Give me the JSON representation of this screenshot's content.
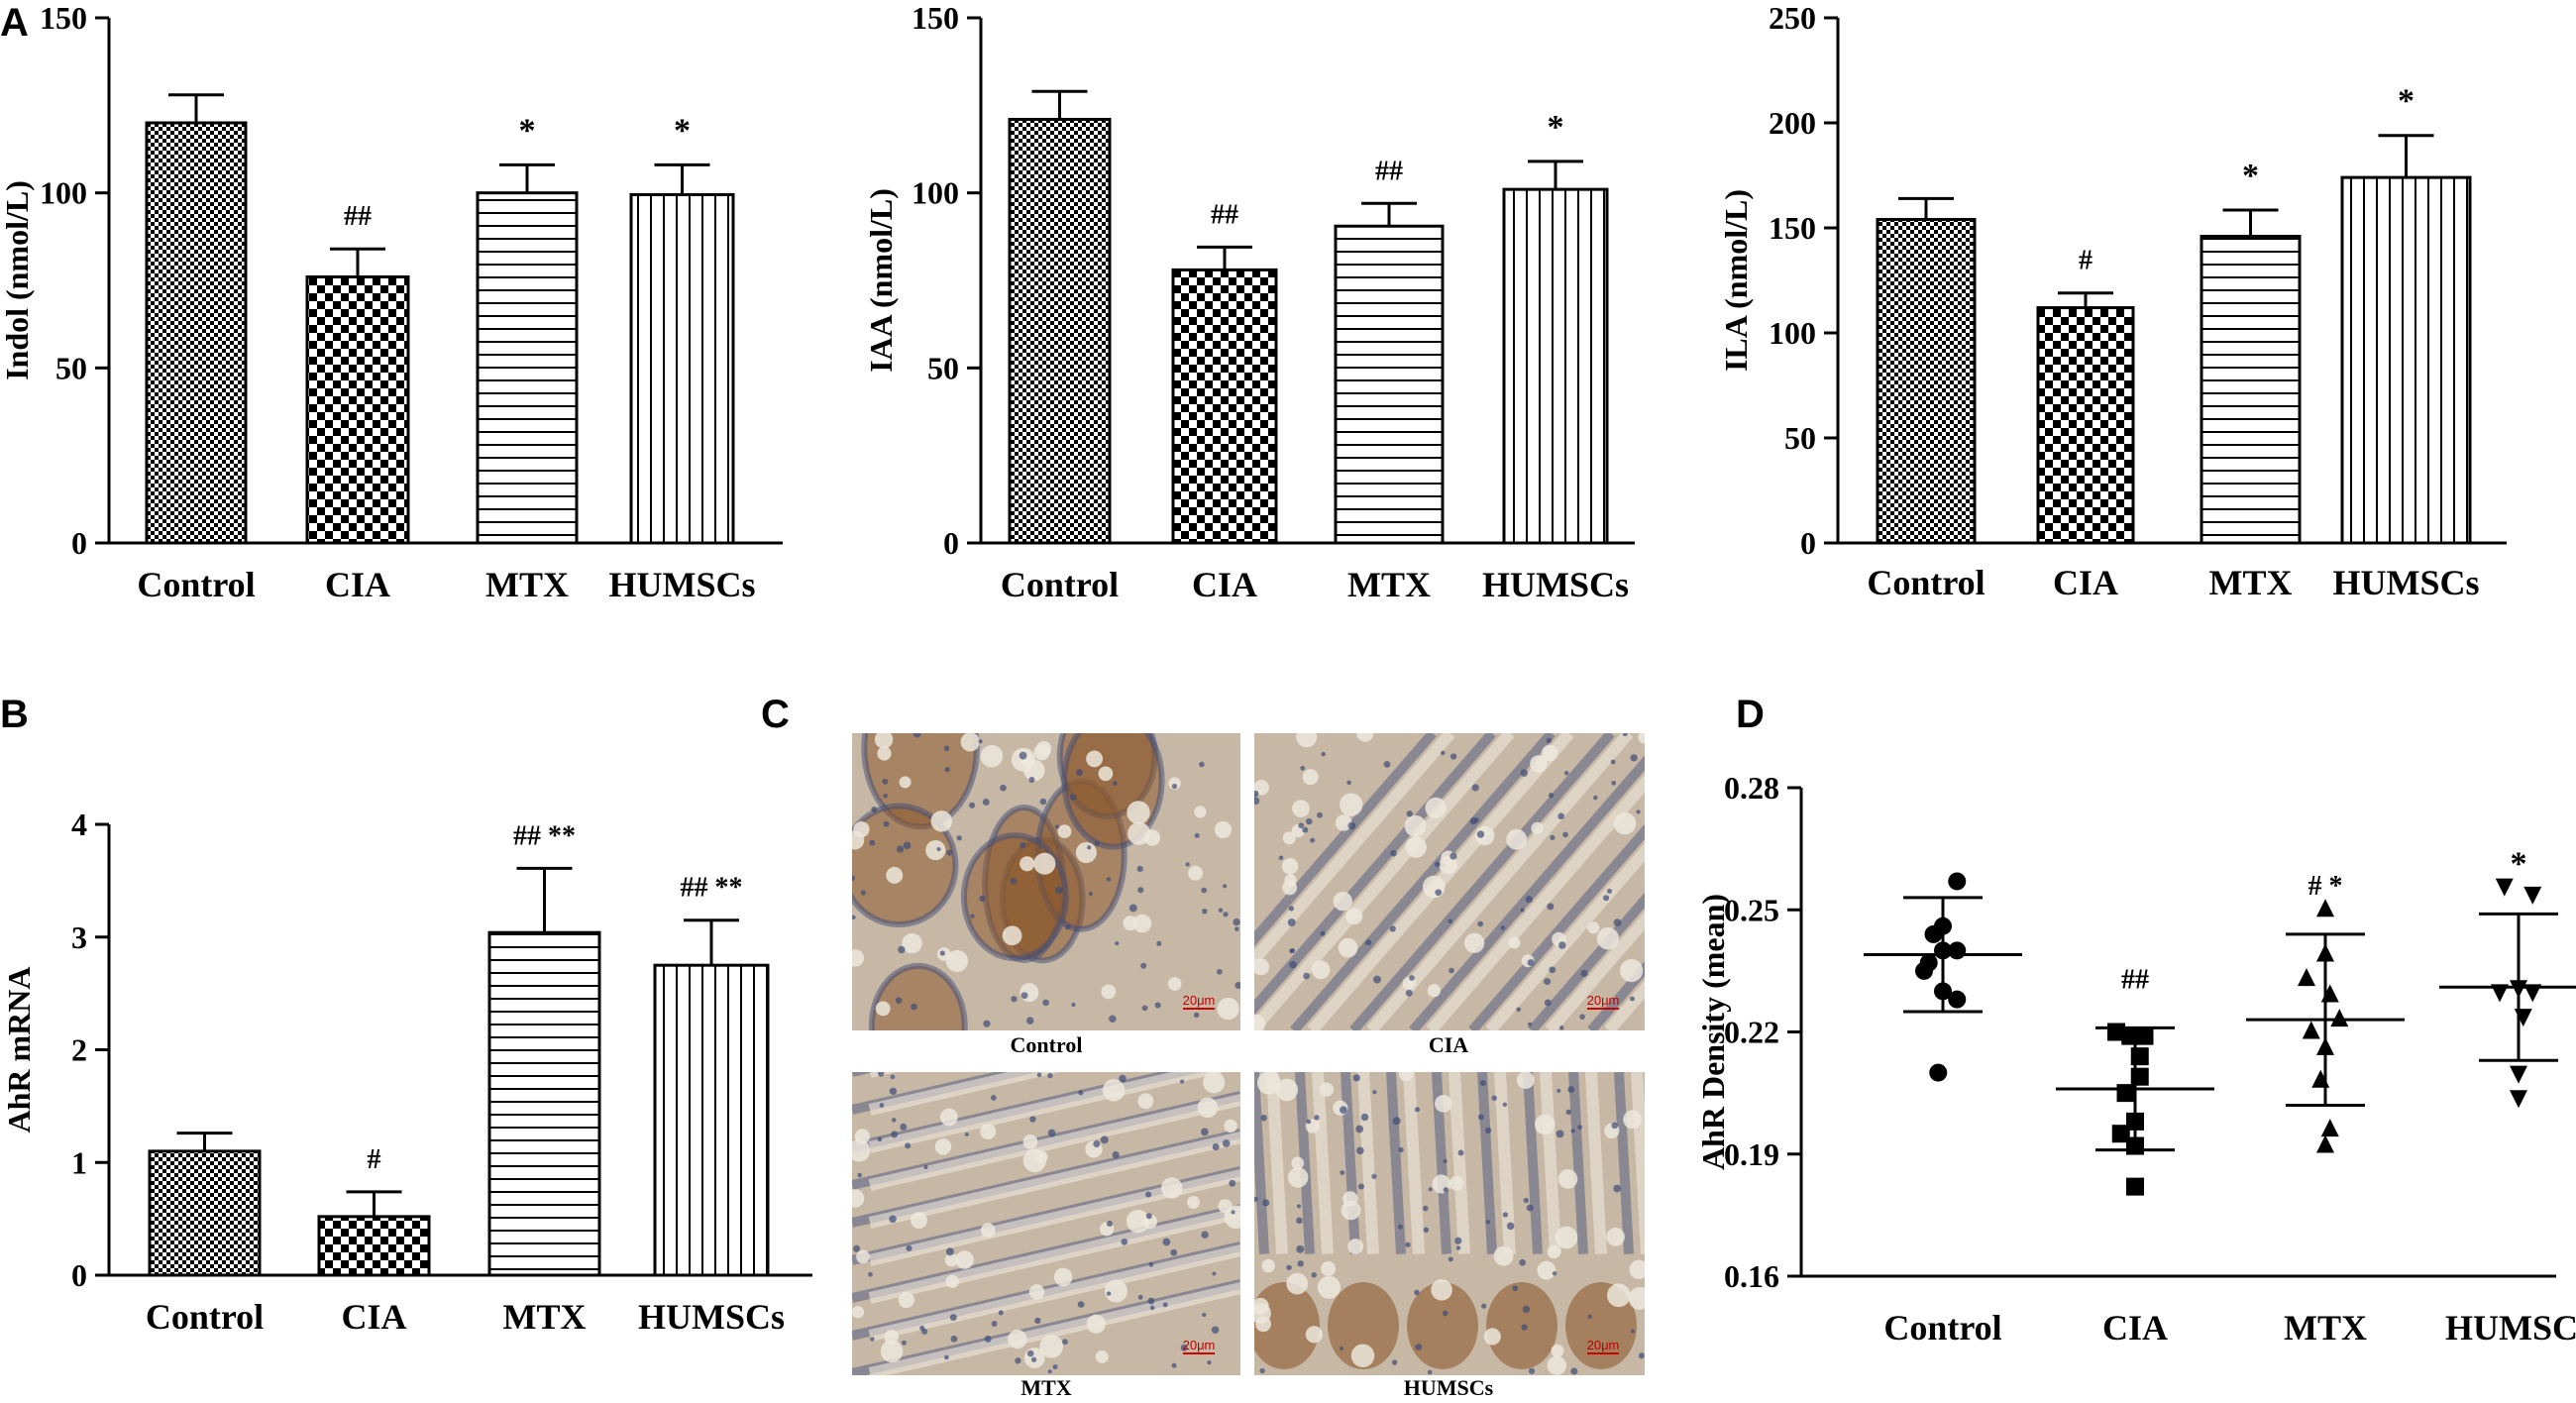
{
  "colors": {
    "axis": "#000000",
    "bar_stroke": "#000000",
    "pattern_fill": "#000000",
    "scale_bar": "#cc0000",
    "tissue_base": "#c7b8a6",
    "tissue_dark": "#3f4b78",
    "tissue_brown": "#8c5a2e",
    "tissue_light": "#ece6dc"
  },
  "chart_data": [
    {
      "panel": "A",
      "type": "bar",
      "ylabel": "Indol (nmol/L)",
      "ylim": [
        0,
        150
      ],
      "yticks": [
        0,
        50,
        100,
        150
      ],
      "categories": [
        "Control",
        "CIA",
        "MTX",
        "HUMSCs"
      ],
      "values": [
        120,
        76,
        100,
        99.5
      ],
      "errors": [
        8,
        8,
        8,
        8.5
      ],
      "annotations": [
        "",
        "##",
        "*",
        "*"
      ],
      "patterns": [
        "checker-small",
        "checker-big",
        "hlines",
        "vlines"
      ]
    },
    {
      "panel": "",
      "type": "bar",
      "ylabel": "IAA (nmol/L)",
      "ylim": [
        0,
        150
      ],
      "yticks": [
        0,
        50,
        100,
        150
      ],
      "categories": [
        "Control",
        "CIA",
        "MTX",
        "HUMSCs"
      ],
      "values": [
        121,
        78,
        90.5,
        101
      ],
      "errors": [
        8,
        6.5,
        6.5,
        8
      ],
      "annotations": [
        "",
        "##",
        "##",
        "*"
      ],
      "patterns": [
        "checker-small",
        "checker-big",
        "hlines",
        "vlines"
      ]
    },
    {
      "panel": "",
      "type": "bar",
      "ylabel": "ILA (nmol/L)",
      "ylim": [
        0,
        250
      ],
      "yticks": [
        0,
        50,
        100,
        150,
        200,
        250
      ],
      "categories": [
        "Control",
        "CIA",
        "MTX",
        "HUMSCs"
      ],
      "values": [
        154,
        112,
        146,
        174
      ],
      "errors": [
        10,
        7,
        12.5,
        20
      ],
      "annotations": [
        "",
        "#",
        "*",
        "*"
      ],
      "patterns": [
        "checker-small",
        "checker-big",
        "hlines",
        "vlines"
      ]
    },
    {
      "panel": "B",
      "type": "bar",
      "ylabel": "AhR mRNA",
      "ylim": [
        0,
        4
      ],
      "yticks": [
        0,
        1,
        2,
        3,
        4
      ],
      "categories": [
        "Control",
        "CIA",
        "MTX",
        "HUMSCs"
      ],
      "values": [
        1.1,
        0.52,
        3.04,
        2.75
      ],
      "errors": [
        0.16,
        0.22,
        0.57,
        0.4
      ],
      "annotations": [
        "",
        "#",
        "## **",
        "## **"
      ],
      "patterns": [
        "checker-small",
        "checker-big",
        "hlines",
        "vlines"
      ]
    },
    {
      "panel": "D",
      "type": "scatter",
      "ylabel": "AhR Density (mean)",
      "ylim": [
        0.16,
        0.28
      ],
      "yticks": [
        0.16,
        0.19,
        0.22,
        0.25,
        0.28
      ],
      "ytick_labels": [
        "0.16",
        "0.19",
        "0.22",
        "0.25",
        "0.28"
      ],
      "categories": [
        "Control",
        "CIA",
        "MTX",
        "HUMSCs"
      ],
      "groups": [
        {
          "name": "Control",
          "marker": "circle",
          "mean": 0.239,
          "sd": 0.014,
          "points": [
            [
              -0.15,
              0.237
            ],
            [
              0.0,
              0.24
            ],
            [
              0.0,
              0.246
            ],
            [
              0.15,
              0.24
            ],
            [
              -0.2,
              0.235
            ],
            [
              0.0,
              0.23
            ],
            [
              0.15,
              0.228
            ],
            [
              -0.1,
              0.244
            ],
            [
              0.15,
              0.257
            ],
            [
              -0.05,
              0.21
            ]
          ]
        },
        {
          "name": "CIA",
          "marker": "square",
          "mean": 0.206,
          "sd": 0.015,
          "points": [
            [
              -0.2,
              0.22
            ],
            [
              -0.05,
              0.219
            ],
            [
              0.1,
              0.219
            ],
            [
              0.05,
              0.214
            ],
            [
              0.05,
              0.209
            ],
            [
              -0.1,
              0.205
            ],
            [
              0.0,
              0.198
            ],
            [
              0.0,
              0.192
            ],
            [
              -0.15,
              0.195
            ],
            [
              0.0,
              0.182
            ]
          ]
        },
        {
          "name": "MTX",
          "marker": "triangle",
          "mean": 0.223,
          "sd": 0.021,
          "points": [
            [
              0.0,
              0.25
            ],
            [
              0.0,
              0.239
            ],
            [
              -0.2,
              0.233
            ],
            [
              0.05,
              0.229
            ],
            [
              0.15,
              0.223
            ],
            [
              -0.15,
              0.22
            ],
            [
              0.0,
              0.216
            ],
            [
              -0.05,
              0.208
            ],
            [
              0.05,
              0.196
            ],
            [
              0.0,
              0.192
            ]
          ]
        },
        {
          "name": "HUMSCs",
          "marker": "triangle-down",
          "mean": 0.231,
          "sd": 0.018,
          "points": [
            [
              -0.15,
              0.256
            ],
            [
              0.15,
              0.254
            ],
            [
              0.0,
              0.231
            ],
            [
              -0.2,
              0.23
            ],
            [
              0.15,
              0.23
            ],
            [
              0.05,
              0.224
            ],
            [
              0.0,
              0.21
            ],
            [
              0.0,
              0.204
            ]
          ]
        }
      ],
      "annotations": [
        "",
        "##",
        "# *",
        "*"
      ]
    }
  ],
  "panel_letters": {
    "A": "A",
    "B": "B",
    "C": "C",
    "D": "D"
  },
  "micrographs": {
    "captions": [
      "Control",
      "CIA",
      "MTX",
      "HUMSCs"
    ],
    "scale_label": "20μm"
  }
}
